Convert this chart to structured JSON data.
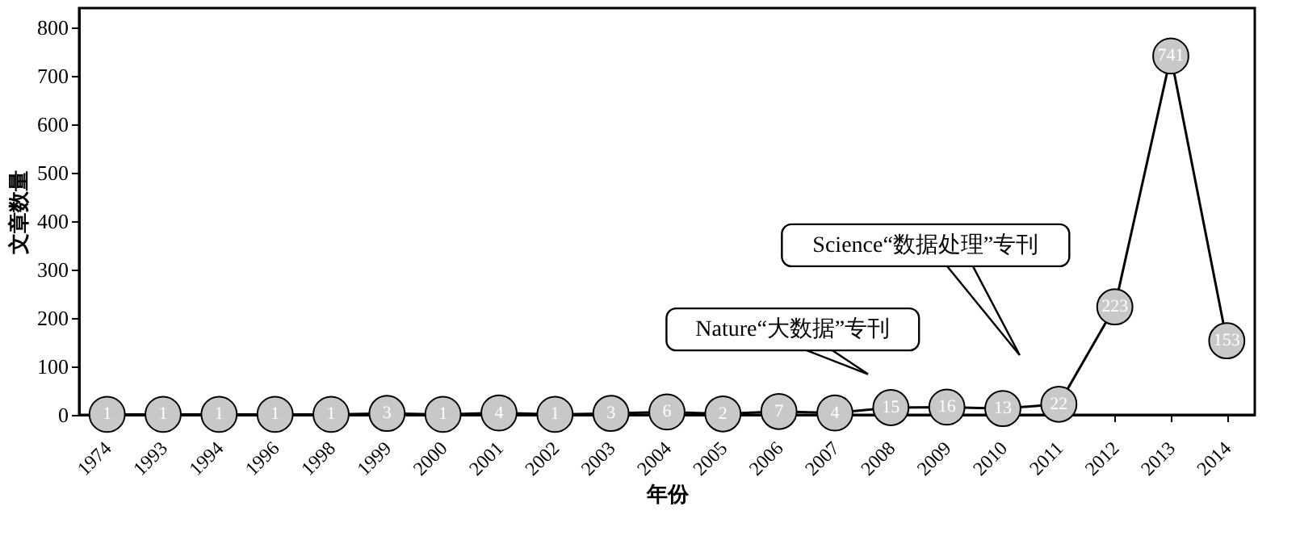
{
  "chart_data": {
    "type": "line",
    "xlabel": "年份",
    "ylabel": "文章数量",
    "categories": [
      "1974",
      "1993",
      "1994",
      "1996",
      "1998",
      "1999",
      "2000",
      "2001",
      "2002",
      "2003",
      "2004",
      "2005",
      "2006",
      "2007",
      "2008",
      "2009",
      "2010",
      "2011",
      "2012",
      "2013",
      "2014"
    ],
    "series": [
      {
        "color": "#000000",
        "values": [
          1,
          1,
          1,
          1,
          1,
          3,
          1,
          4,
          1,
          3,
          6,
          2,
          7,
          4,
          15,
          16,
          13,
          22,
          223,
          741,
          153
        ]
      }
    ],
    "ylim": [
      0,
      840
    ],
    "yticks": [
      0,
      100,
      200,
      300,
      400,
      500,
      600,
      700,
      800
    ],
    "annotations": [
      "Nature“大数据”专刊",
      "Science“数据处理”专刊"
    ],
    "data_labels": true,
    "marker": "circle",
    "line_style": "solid",
    "grid": false
  }
}
